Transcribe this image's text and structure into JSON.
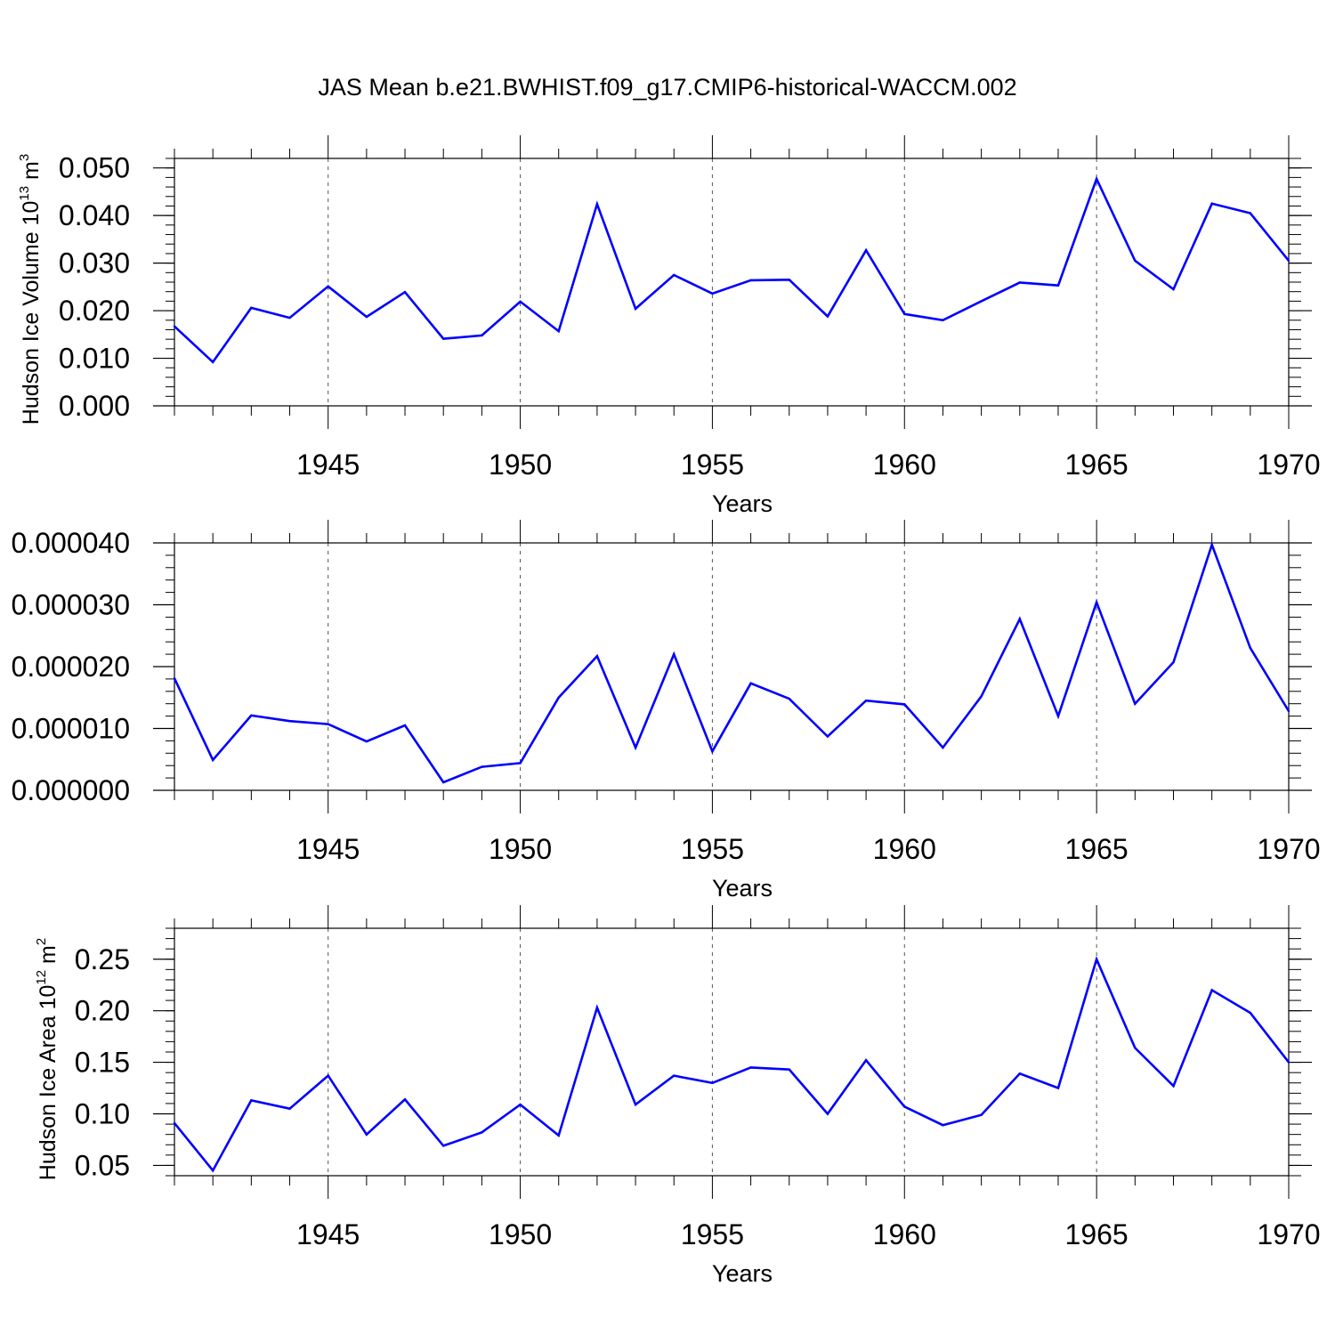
{
  "title": "JAS Mean b.e21.BWHIST.f09_g17.CMIP6-historical-WACCM.002",
  "colors": {
    "line": "#0000ff",
    "axis": "#000000",
    "grid": "#555555"
  },
  "chart_data": [
    {
      "type": "line",
      "name": "volume",
      "ylabel": {
        "text": "Hudson Ice Volume 10",
        "sup": "13",
        "unit": " m",
        "unit_sup": "3"
      },
      "xlabel": "Years",
      "xlim": [
        1941,
        1970
      ],
      "ylim": [
        0.0,
        0.052
      ],
      "yticks": [
        0.0,
        0.01,
        0.02,
        0.03,
        0.04,
        0.05
      ],
      "ytick_labels": [
        "0.000",
        "0.010",
        "0.020",
        "0.030",
        "0.040",
        "0.050"
      ],
      "yminor_step": 0.002,
      "xticks": [
        1945,
        1950,
        1955,
        1960,
        1965,
        1970
      ],
      "xtick_labels": [
        "1945",
        "1950",
        "1955",
        "1960",
        "1965",
        "1970"
      ],
      "grid": "dashed vertical at major x ticks",
      "x": [
        1941,
        1942,
        1943,
        1944,
        1945,
        1946,
        1947,
        1948,
        1949,
        1950,
        1951,
        1952,
        1953,
        1954,
        1955,
        1956,
        1957,
        1958,
        1959,
        1960,
        1961,
        1962,
        1963,
        1964,
        1965,
        1966,
        1967,
        1968,
        1969,
        1970
      ],
      "values": [
        0.0167,
        0.0092,
        0.0206,
        0.0185,
        0.0251,
        0.0187,
        0.0239,
        0.0141,
        0.0148,
        0.0219,
        0.0157,
        0.0424,
        0.0204,
        0.0275,
        0.0236,
        0.0264,
        0.0265,
        0.0188,
        0.0327,
        0.0193,
        0.018,
        0.022,
        0.0259,
        0.0253,
        0.0477,
        0.0305,
        0.0245,
        0.0425,
        0.0405,
        0.0305
      ]
    },
    {
      "type": "line",
      "name": "middle",
      "ylabel": null,
      "xlabel": "Years",
      "xlim": [
        1941,
        1970
      ],
      "ylim": [
        0.0,
        4e-05
      ],
      "yticks": [
        0.0,
        1e-05,
        2e-05,
        3e-05,
        4e-05
      ],
      "ytick_labels": [
        "0.000000",
        "0.000010",
        "0.000020",
        "0.000030",
        "0.000040"
      ],
      "yminor_step": 2e-06,
      "xticks": [
        1945,
        1950,
        1955,
        1960,
        1965,
        1970
      ],
      "xtick_labels": [
        "1945",
        "1950",
        "1955",
        "1960",
        "1965",
        "1970"
      ],
      "grid": "dashed vertical at major x ticks",
      "x": [
        1941,
        1942,
        1943,
        1944,
        1945,
        1946,
        1947,
        1948,
        1949,
        1950,
        1951,
        1952,
        1953,
        1954,
        1955,
        1956,
        1957,
        1958,
        1959,
        1960,
        1961,
        1962,
        1963,
        1964,
        1965,
        1966,
        1967,
        1968,
        1969,
        1970
      ],
      "values": [
        1.81e-05,
        4.9e-06,
        1.21e-05,
        1.12e-05,
        1.07e-05,
        7.9e-06,
        1.05e-05,
        1.3e-06,
        3.8e-06,
        4.4e-06,
        1.5e-05,
        2.17e-05,
        6.9e-06,
        2.2e-05,
        6.3e-06,
        1.73e-05,
        1.48e-05,
        8.7e-06,
        1.45e-05,
        1.39e-05,
        6.9e-06,
        1.52e-05,
        2.77e-05,
        1.2e-05,
        3.04e-05,
        1.4e-05,
        2.07e-05,
        3.97e-05,
        2.3e-05,
        1.28e-05
      ]
    },
    {
      "type": "line",
      "name": "area",
      "ylabel": {
        "text": "Hudson Ice Area 10",
        "sup": "12",
        "unit": " m",
        "unit_sup": "2"
      },
      "xlabel": "Years",
      "xlim": [
        1941,
        1970
      ],
      "ylim": [
        0.04,
        0.28
      ],
      "yticks": [
        0.05,
        0.1,
        0.15,
        0.2,
        0.25
      ],
      "ytick_labels": [
        "0.05",
        "0.10",
        "0.15",
        "0.20",
        "0.25"
      ],
      "yminor_step": 0.01,
      "xticks": [
        1945,
        1950,
        1955,
        1960,
        1965,
        1970
      ],
      "xtick_labels": [
        "1945",
        "1950",
        "1955",
        "1960",
        "1965",
        "1970"
      ],
      "grid": "dashed vertical at major x ticks",
      "x": [
        1941,
        1942,
        1943,
        1944,
        1945,
        1946,
        1947,
        1948,
        1949,
        1950,
        1951,
        1952,
        1953,
        1954,
        1955,
        1956,
        1957,
        1958,
        1959,
        1960,
        1961,
        1962,
        1963,
        1964,
        1965,
        1966,
        1967,
        1968,
        1969,
        1970
      ],
      "values": [
        0.091,
        0.045,
        0.113,
        0.105,
        0.137,
        0.08,
        0.114,
        0.069,
        0.082,
        0.109,
        0.079,
        0.203,
        0.109,
        0.137,
        0.13,
        0.145,
        0.143,
        0.1,
        0.152,
        0.107,
        0.089,
        0.099,
        0.139,
        0.125,
        0.25,
        0.164,
        0.127,
        0.22,
        0.198,
        0.15
      ]
    }
  ]
}
